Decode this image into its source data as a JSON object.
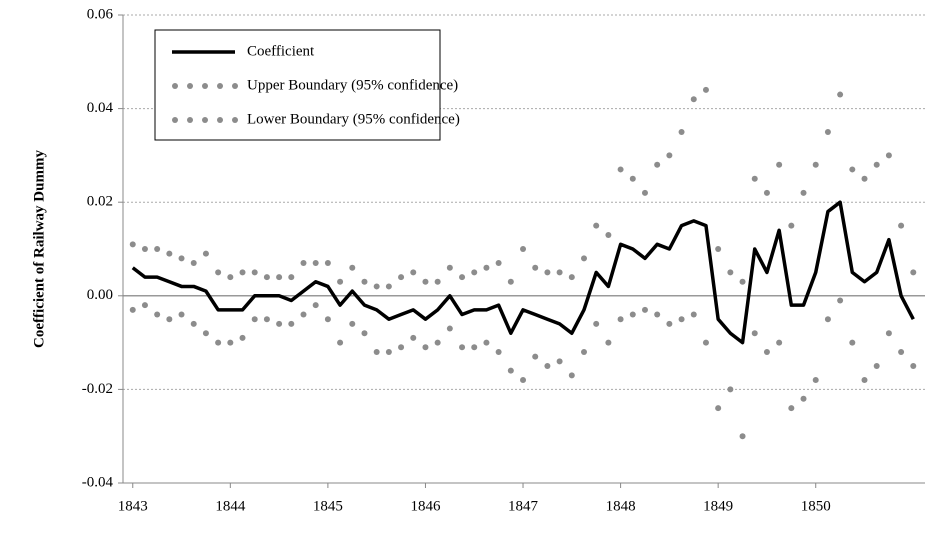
{
  "chart_data": {
    "type": "line",
    "y_label": "Coefficient of Railway Dummy",
    "x": [
      1843,
      1843.125,
      1843.25,
      1843.375,
      1843.5,
      1843.625,
      1843.75,
      1843.875,
      1844,
      1844.125,
      1844.25,
      1844.375,
      1844.5,
      1844.625,
      1844.75,
      1844.875,
      1845,
      1845.125,
      1845.25,
      1845.375,
      1845.5,
      1845.625,
      1845.75,
      1845.875,
      1846,
      1846.125,
      1846.25,
      1846.375,
      1846.5,
      1846.625,
      1846.75,
      1846.875,
      1847,
      1847.125,
      1847.25,
      1847.375,
      1847.5,
      1847.625,
      1847.75,
      1847.875,
      1848,
      1848.125,
      1848.25,
      1848.375,
      1848.5,
      1848.625,
      1848.75,
      1848.875,
      1849,
      1849.125,
      1849.25,
      1849.375,
      1849.5,
      1849.625,
      1849.75,
      1849.875,
      1850,
      1850.125,
      1850.25,
      1850.375,
      1850.5,
      1850.625,
      1850.75,
      1850.875,
      1851
    ],
    "series": [
      {
        "name": "Coefficient",
        "color": "#000000",
        "style": "solid",
        "values": [
          0.006,
          0.004,
          0.004,
          0.003,
          0.002,
          0.002,
          0.001,
          -0.003,
          -0.003,
          -0.003,
          0.0,
          0.0,
          0.0,
          -0.001,
          0.001,
          0.003,
          0.002,
          -0.002,
          0.001,
          -0.002,
          -0.003,
          -0.005,
          -0.004,
          -0.003,
          -0.005,
          -0.003,
          0.0,
          -0.004,
          -0.003,
          -0.003,
          -0.002,
          -0.008,
          -0.003,
          -0.004,
          -0.005,
          -0.006,
          -0.008,
          -0.003,
          0.005,
          0.002,
          0.011,
          0.01,
          0.008,
          0.011,
          0.01,
          0.015,
          0.016,
          0.015,
          -0.005,
          -0.008,
          -0.01,
          0.01,
          0.005,
          0.014,
          -0.002,
          -0.002,
          0.005,
          0.018,
          0.02,
          0.005,
          0.003,
          0.005,
          0.012,
          0.0,
          -0.005
        ]
      },
      {
        "name": "Upper Boundary (95% confidence)",
        "color": "#8c8c8c",
        "style": "dotted",
        "values": [
          0.011,
          0.01,
          0.01,
          0.009,
          0.008,
          0.007,
          0.009,
          0.005,
          0.004,
          0.005,
          0.005,
          0.004,
          0.004,
          0.004,
          0.007,
          0.007,
          0.007,
          0.003,
          0.006,
          0.003,
          0.002,
          0.002,
          0.004,
          0.005,
          0.003,
          0.003,
          0.006,
          0.004,
          0.005,
          0.006,
          0.007,
          0.003,
          0.01,
          0.006,
          0.005,
          0.005,
          0.004,
          0.008,
          0.015,
          0.013,
          0.027,
          0.025,
          0.022,
          0.028,
          0.03,
          0.035,
          0.042,
          0.044,
          0.01,
          0.005,
          0.003,
          0.025,
          0.022,
          0.028,
          0.015,
          0.022,
          0.028,
          0.035,
          0.043,
          0.027,
          0.025,
          0.028,
          0.03,
          0.015,
          0.005
        ]
      },
      {
        "name": "Lower Boundary (95% confidence)",
        "color": "#8c8c8c",
        "style": "dotted",
        "values": [
          -0.003,
          -0.002,
          -0.004,
          -0.005,
          -0.004,
          -0.006,
          -0.008,
          -0.01,
          -0.01,
          -0.009,
          -0.005,
          -0.005,
          -0.006,
          -0.006,
          -0.004,
          -0.002,
          -0.005,
          -0.01,
          -0.006,
          -0.008,
          -0.012,
          -0.012,
          -0.011,
          -0.009,
          -0.011,
          -0.01,
          -0.007,
          -0.011,
          -0.011,
          -0.01,
          -0.012,
          -0.016,
          -0.018,
          -0.013,
          -0.015,
          -0.014,
          -0.017,
          -0.012,
          -0.006,
          -0.01,
          -0.005,
          -0.004,
          -0.003,
          -0.004,
          -0.006,
          -0.005,
          -0.004,
          -0.01,
          -0.024,
          -0.02,
          -0.03,
          -0.008,
          -0.012,
          -0.01,
          -0.024,
          -0.022,
          -0.018,
          -0.005,
          -0.001,
          -0.01,
          -0.018,
          -0.015,
          -0.008,
          -0.012,
          -0.015
        ]
      }
    ],
    "xlim": [
      1842.9,
      1851.12
    ],
    "xticks": [
      1843,
      1844,
      1845,
      1846,
      1847,
      1848,
      1849,
      1850
    ],
    "ylim": [
      -0.04,
      0.06
    ],
    "yticks": [
      {
        "value": -0.04,
        "label": "-0.04"
      },
      {
        "value": -0.02,
        "label": "-0.02"
      },
      {
        "value": 0,
        "label": "0.00"
      },
      {
        "value": 0.02,
        "label": "0.02"
      },
      {
        "value": 0.04,
        "label": "0.04"
      },
      {
        "value": 0.06,
        "label": "0.06"
      }
    ],
    "grid": true,
    "legend": "upper-left"
  }
}
